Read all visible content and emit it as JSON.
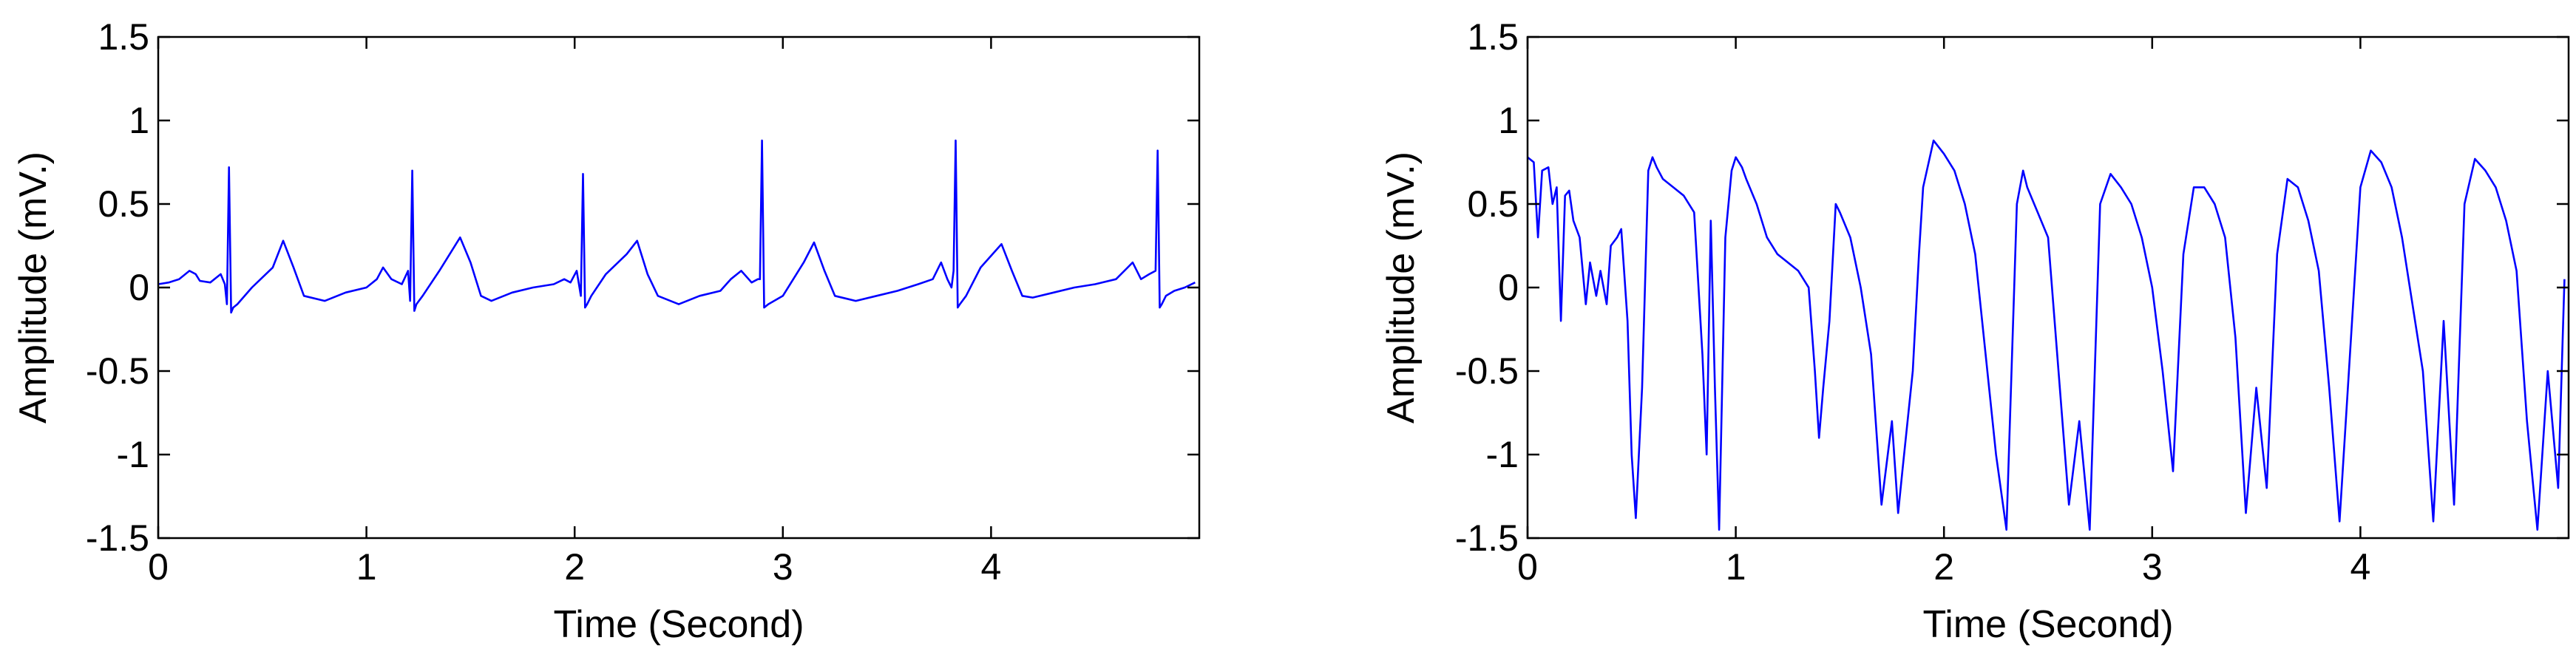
{
  "figure": {
    "background": "#ffffff",
    "line_color": "#0000ff"
  },
  "chart_data": [
    {
      "type": "line",
      "title": "",
      "xlabel": "Time (Second)",
      "ylabel": "Amplitude (mV.)",
      "xlim": [
        0,
        5
      ],
      "ylim": [
        -1.5,
        1.5
      ],
      "xticks": [
        0,
        1,
        2,
        3,
        4
      ],
      "xtick_labels": [
        "0",
        "1",
        "2",
        "3",
        "4"
      ],
      "yticks": [
        1.5,
        1,
        0.5,
        0,
        -0.5,
        -1,
        -1.5
      ],
      "ytick_labels": [
        "1.5",
        "1",
        "0.5",
        "0",
        "-0.5",
        "-1",
        "-1.5"
      ],
      "grid": false,
      "legend": "none",
      "series": [
        {
          "color": "#0000ff",
          "x": [
            0,
            0.05,
            0.1,
            0.15,
            0.18,
            0.2,
            0.25,
            0.3,
            0.32,
            0.33,
            0.34,
            0.35,
            0.36,
            0.38,
            0.45,
            0.55,
            0.6,
            0.65,
            0.7,
            0.8,
            0.9,
            1.0,
            1.05,
            1.08,
            1.12,
            1.17,
            1.2,
            1.21,
            1.22,
            1.23,
            1.24,
            1.27,
            1.35,
            1.45,
            1.5,
            1.55,
            1.6,
            1.7,
            1.8,
            1.9,
            1.95,
            1.98,
            2.01,
            2.03,
            2.04,
            2.05,
            2.06,
            2.08,
            2.15,
            2.25,
            2.3,
            2.35,
            2.4,
            2.5,
            2.6,
            2.7,
            2.75,
            2.8,
            2.85,
            2.88,
            2.89,
            2.9,
            2.91,
            2.93,
            3.0,
            3.1,
            3.15,
            3.2,
            3.25,
            3.35,
            3.45,
            3.55,
            3.65,
            3.72,
            3.76,
            3.79,
            3.81,
            3.82,
            3.83,
            3.84,
            3.85,
            3.88,
            3.95,
            4.05,
            4.1,
            4.15,
            4.2,
            4.3,
            4.4,
            4.5,
            4.6,
            4.68,
            4.72,
            4.76,
            4.79,
            4.8,
            4.81,
            4.82,
            4.84,
            4.88,
            4.93,
            4.98
          ],
          "y": [
            0.02,
            0.03,
            0.05,
            0.1,
            0.08,
            0.04,
            0.03,
            0.08,
            0.02,
            -0.1,
            0.72,
            -0.15,
            -0.12,
            -0.1,
            0.0,
            0.12,
            0.28,
            0.12,
            -0.05,
            -0.08,
            -0.03,
            0.0,
            0.05,
            0.12,
            0.05,
            0.02,
            0.1,
            -0.08,
            0.7,
            -0.14,
            -0.1,
            -0.05,
            0.1,
            0.3,
            0.15,
            -0.05,
            -0.08,
            -0.03,
            0.0,
            0.02,
            0.05,
            0.03,
            0.1,
            -0.05,
            0.68,
            -0.12,
            -0.1,
            -0.05,
            0.08,
            0.2,
            0.28,
            0.08,
            -0.05,
            -0.1,
            -0.05,
            -0.02,
            0.05,
            0.1,
            0.03,
            0.05,
            0.05,
            0.88,
            -0.12,
            -0.1,
            -0.05,
            0.15,
            0.27,
            0.1,
            -0.05,
            -0.08,
            -0.05,
            -0.02,
            0.02,
            0.05,
            0.15,
            0.05,
            0.0,
            0.1,
            0.88,
            -0.12,
            -0.1,
            -0.05,
            0.12,
            0.26,
            0.1,
            -0.05,
            -0.06,
            -0.03,
            0.0,
            0.02,
            0.05,
            0.15,
            0.05,
            0.08,
            0.1,
            0.82,
            -0.12,
            -0.1,
            -0.05,
            -0.02,
            0.0,
            0.03
          ]
        }
      ]
    },
    {
      "type": "line",
      "title": "",
      "xlabel": "Time (Second)",
      "ylabel": "Amplitude (mV.)",
      "xlim": [
        0,
        5
      ],
      "ylim": [
        -1.5,
        1.5
      ],
      "xticks": [
        0,
        1,
        2,
        3,
        4
      ],
      "xtick_labels": [
        "0",
        "1",
        "2",
        "3",
        "4"
      ],
      "yticks": [
        1.5,
        1,
        0.5,
        0,
        -0.5,
        -1,
        -1.5
      ],
      "ytick_labels": [
        "1.5",
        "1",
        "0.5",
        "0",
        "-0.5",
        "-1",
        "-1.5"
      ],
      "grid": false,
      "legend": "none",
      "series": [
        {
          "color": "#0000ff",
          "x": [
            0,
            0.03,
            0.05,
            0.07,
            0.1,
            0.12,
            0.14,
            0.16,
            0.18,
            0.2,
            0.22,
            0.25,
            0.28,
            0.3,
            0.33,
            0.35,
            0.38,
            0.4,
            0.43,
            0.45,
            0.48,
            0.5,
            0.52,
            0.55,
            0.58,
            0.6,
            0.62,
            0.65,
            0.7,
            0.75,
            0.8,
            0.84,
            0.86,
            0.88,
            0.9,
            0.92,
            0.95,
            0.98,
            1.0,
            1.03,
            1.05,
            1.1,
            1.15,
            1.2,
            1.3,
            1.35,
            1.38,
            1.4,
            1.42,
            1.45,
            1.48,
            1.5,
            1.55,
            1.6,
            1.65,
            1.7,
            1.75,
            1.78,
            1.8,
            1.85,
            1.88,
            1.9,
            1.95,
            2.0,
            2.05,
            2.1,
            2.15,
            2.2,
            2.25,
            2.3,
            2.35,
            2.38,
            2.4,
            2.45,
            2.5,
            2.55,
            2.6,
            2.65,
            2.7,
            2.75,
            2.8,
            2.85,
            2.9,
            2.95,
            3.0,
            3.05,
            3.1,
            3.15,
            3.2,
            3.25,
            3.3,
            3.35,
            3.4,
            3.45,
            3.5,
            3.55,
            3.6,
            3.65,
            3.7,
            3.75,
            3.8,
            3.85,
            3.9,
            3.95,
            4.0,
            4.05,
            4.1,
            4.15,
            4.2,
            4.25,
            4.3,
            4.35,
            4.4,
            4.45,
            4.5,
            4.55,
            4.6,
            4.65,
            4.7,
            4.75,
            4.8,
            4.85,
            4.9,
            4.95,
            4.98
          ],
          "y": [
            0.78,
            0.75,
            0.3,
            0.7,
            0.72,
            0.5,
            0.6,
            -0.2,
            0.55,
            0.58,
            0.4,
            0.3,
            -0.1,
            0.15,
            -0.05,
            0.1,
            -0.1,
            0.25,
            0.3,
            0.35,
            -0.2,
            -1.0,
            -1.38,
            -0.6,
            0.7,
            0.78,
            0.72,
            0.65,
            0.6,
            0.55,
            0.45,
            -0.4,
            -1.0,
            0.4,
            -0.6,
            -1.45,
            0.3,
            0.7,
            0.78,
            0.72,
            0.65,
            0.5,
            0.3,
            0.2,
            0.1,
            0.0,
            -0.5,
            -0.9,
            -0.6,
            -0.2,
            0.5,
            0.45,
            0.3,
            0.0,
            -0.4,
            -1.3,
            -0.8,
            -1.35,
            -1.1,
            -0.5,
            0.2,
            0.6,
            0.88,
            0.8,
            0.7,
            0.5,
            0.2,
            -0.4,
            -1.0,
            -1.45,
            0.5,
            0.7,
            0.6,
            0.45,
            0.3,
            -0.5,
            -1.3,
            -0.8,
            -1.45,
            0.5,
            0.68,
            0.6,
            0.5,
            0.3,
            0.0,
            -0.5,
            -1.1,
            0.2,
            0.6,
            0.6,
            0.5,
            0.3,
            -0.3,
            -1.35,
            -0.6,
            -1.2,
            0.2,
            0.65,
            0.6,
            0.4,
            0.1,
            -0.6,
            -1.4,
            -0.4,
            0.6,
            0.82,
            0.75,
            0.6,
            0.3,
            -0.1,
            -0.5,
            -1.4,
            -0.2,
            -1.3,
            0.5,
            0.77,
            0.7,
            0.6,
            0.4,
            0.1,
            -0.8,
            -1.45,
            -0.5,
            -1.2,
            0.05
          ]
        }
      ]
    }
  ]
}
